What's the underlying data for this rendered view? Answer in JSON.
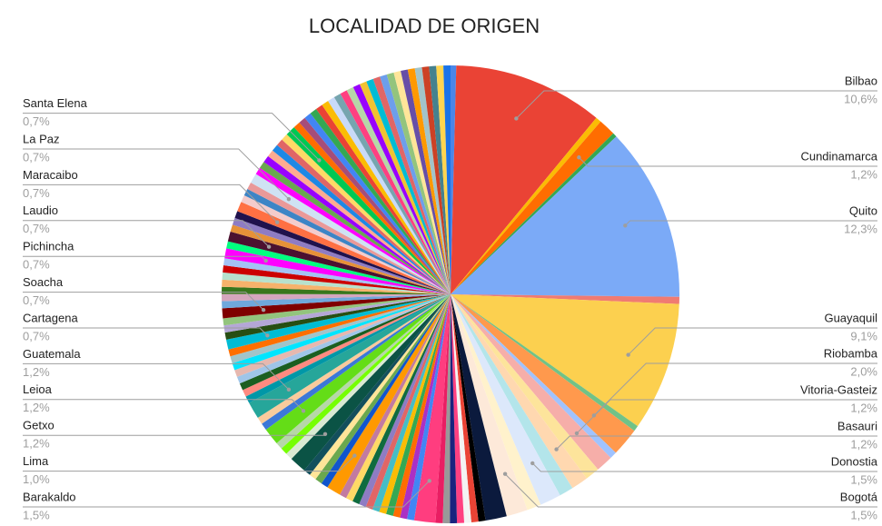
{
  "chart_data": {
    "type": "pie",
    "title": "LOCALIDAD DE ORIGEN",
    "categories": [
      null,
      "Bilbao",
      null,
      "Cundinamarca",
      null,
      "Quito",
      null,
      "Guayaquil",
      null,
      "Riobamba",
      null,
      "Vitoria-Gasteiz",
      null,
      "Basauri",
      null,
      "Donostia",
      null,
      "Bogotá",
      null,
      null,
      null,
      null,
      null,
      null,
      null,
      null,
      "Barakaldo",
      null,
      null,
      null,
      null,
      null,
      null,
      null,
      null,
      null,
      null,
      null,
      "Lima",
      null,
      null,
      null,
      null,
      "Getxo",
      null,
      null,
      null,
      "Leioa",
      null,
      null,
      "Guatemala",
      null,
      null,
      null,
      null,
      null,
      null,
      null,
      null,
      "Cartagena",
      null,
      null,
      null,
      "Soacha",
      null,
      null,
      null,
      null,
      null,
      null,
      null,
      "Pichincha",
      null,
      "Laudio",
      null,
      null,
      null,
      "Maracaibo",
      null,
      null,
      null,
      "La Paz",
      null,
      null,
      null,
      null,
      null,
      null,
      null,
      "Santa Elena",
      null,
      null,
      null,
      null,
      null,
      null,
      null,
      null,
      null,
      null,
      null,
      null,
      null,
      null,
      null,
      null,
      null,
      null,
      null,
      null,
      null,
      null,
      null,
      null
    ],
    "values": [
      0.4,
      10.6,
      0.4,
      1.2,
      0.3,
      12.3,
      0.5,
      9.1,
      0.4,
      2.0,
      0.5,
      1.2,
      1.0,
      1.2,
      1.0,
      1.5,
      1.0,
      1.5,
      1.5,
      0.5,
      0.5,
      0.5,
      0.5,
      0.5,
      0.5,
      0.5,
      1.5,
      0.5,
      0.5,
      0.5,
      0.5,
      0.5,
      0.5,
      0.5,
      0.5,
      0.5,
      0.5,
      0.5,
      1.0,
      0.5,
      0.5,
      0.5,
      0.5,
      1.2,
      0.5,
      0.5,
      0.5,
      1.2,
      0.5,
      0.5,
      1.2,
      0.5,
      0.5,
      0.5,
      0.5,
      0.5,
      0.5,
      0.5,
      0.5,
      0.7,
      0.5,
      0.5,
      0.5,
      0.7,
      0.5,
      0.5,
      0.5,
      0.5,
      0.5,
      0.5,
      0.5,
      0.7,
      0.5,
      0.7,
      0.5,
      0.5,
      0.5,
      0.7,
      0.5,
      0.5,
      0.5,
      0.7,
      0.5,
      0.5,
      0.5,
      0.5,
      0.5,
      0.5,
      0.5,
      0.7,
      0.5,
      0.5,
      0.5,
      0.5,
      0.5,
      0.5,
      0.5,
      0.5,
      0.5,
      0.5,
      0.5,
      0.5,
      0.5,
      0.5,
      0.5,
      0.5,
      0.5,
      0.5,
      0.5,
      0.5,
      0.5,
      0.5,
      0.5,
      0.5
    ],
    "value_labels": [
      null,
      "10,6%",
      null,
      "1,2%",
      null,
      "12,3%",
      null,
      "9,1%",
      null,
      "2,0%",
      null,
      "1,2%",
      null,
      "1,2%",
      null,
      "1,5%",
      null,
      "1,5%",
      null,
      null,
      null,
      null,
      null,
      null,
      null,
      null,
      "1,5%",
      null,
      null,
      null,
      null,
      null,
      null,
      null,
      null,
      null,
      null,
      null,
      "1,0%",
      null,
      null,
      null,
      null,
      "1,2%",
      null,
      null,
      null,
      "1,2%",
      null,
      null,
      "1,2%",
      null,
      null,
      null,
      null,
      null,
      null,
      null,
      null,
      "0,7%",
      null,
      null,
      null,
      "0,7%",
      null,
      null,
      null,
      null,
      null,
      null,
      null,
      "0,7%",
      null,
      "0,7%",
      null,
      null,
      null,
      "0,7%",
      null,
      null,
      null,
      "0,7%",
      null,
      null,
      null,
      null,
      null,
      null,
      null,
      "0,7%",
      null,
      null,
      null,
      null,
      null,
      null,
      null,
      null,
      null,
      null,
      null,
      null,
      null,
      null,
      null,
      null,
      null,
      null,
      null,
      null,
      null,
      null,
      null,
      null
    ],
    "colors": [
      "#4a86e8",
      "#ea4335",
      "#fbbc04",
      "#ff6d01",
      "#34a853",
      "#7baaf7",
      "#f07b72",
      "#fcd04f",
      "#71c287",
      "#ff994d",
      "#a0c3ff",
      "#f6aea9",
      "#fde49b",
      "#ffd8b0",
      "#b3e5ea",
      "#dce8fb",
      "#fff2cc",
      "#fde9d9",
      "#0b1a3d",
      "#000000",
      "#ea4335",
      "#f3f3f3",
      "#ff4081",
      "#1a237e",
      "#999999",
      "#e91e63",
      "#ff3d7f",
      "#4285f4",
      "#ab30c4",
      "#ff6d01",
      "#34a853",
      "#fbbc04",
      "#46bdc6",
      "#e06666",
      "#8e7cc3",
      "#0f6b3f",
      "#ffd966",
      "#c27ba0",
      "#ff9900",
      "#1155cc",
      "#6aa84f",
      "#ffe599",
      "#134f5c",
      "#0b5345",
      "#d9ead3",
      "#76ff03",
      "#b6d7a8",
      "#64dd17",
      "#3c78d8",
      "#f9cb9c",
      "#26a69a",
      "#0097a7",
      "#ff8a80",
      "#1b5e20",
      "#9fc5e8",
      "#e6b8af",
      "#00e5ff",
      "#a2c4c9",
      "#ff6f00",
      "#00bcd4",
      "#274e13",
      "#b4a7d6",
      "#93c47d",
      "#7f0000",
      "#6fa8dc",
      "#d5a6bd",
      "#38761d",
      "#f6b26b",
      "#b7e1cd",
      "#cc0000",
      "#a4c2f4",
      "#ff00ff",
      "#00ff7f",
      "#4c1130",
      "#e69138",
      "#8e7cc3",
      "#20124d",
      "#ff7043",
      "#f4cccc",
      "#3d85c6",
      "#ea9999",
      "#cfe2f3",
      "#ff00ff",
      "#6aa84f",
      "#9900ff",
      "#ffab91",
      "#1e88e5",
      "#e06666",
      "#ffd966",
      "#00c853",
      "#ff6d01",
      "#a64d79",
      "#4285f4",
      "#34a853",
      "#ea4335",
      "#fbbc04",
      "#c9daf8",
      "#76a5af",
      "#ff4081",
      "#b6d7a8",
      "#9900ff",
      "#f1c232",
      "#00bcd4",
      "#e06666",
      "#6d9eeb",
      "#93c47d",
      "#ffe599",
      "#674ea7",
      "#ff9900",
      "#a2c4c9",
      "#cc4125",
      "#45818e",
      "#ffd54f",
      "#1a73e8"
    ]
  }
}
